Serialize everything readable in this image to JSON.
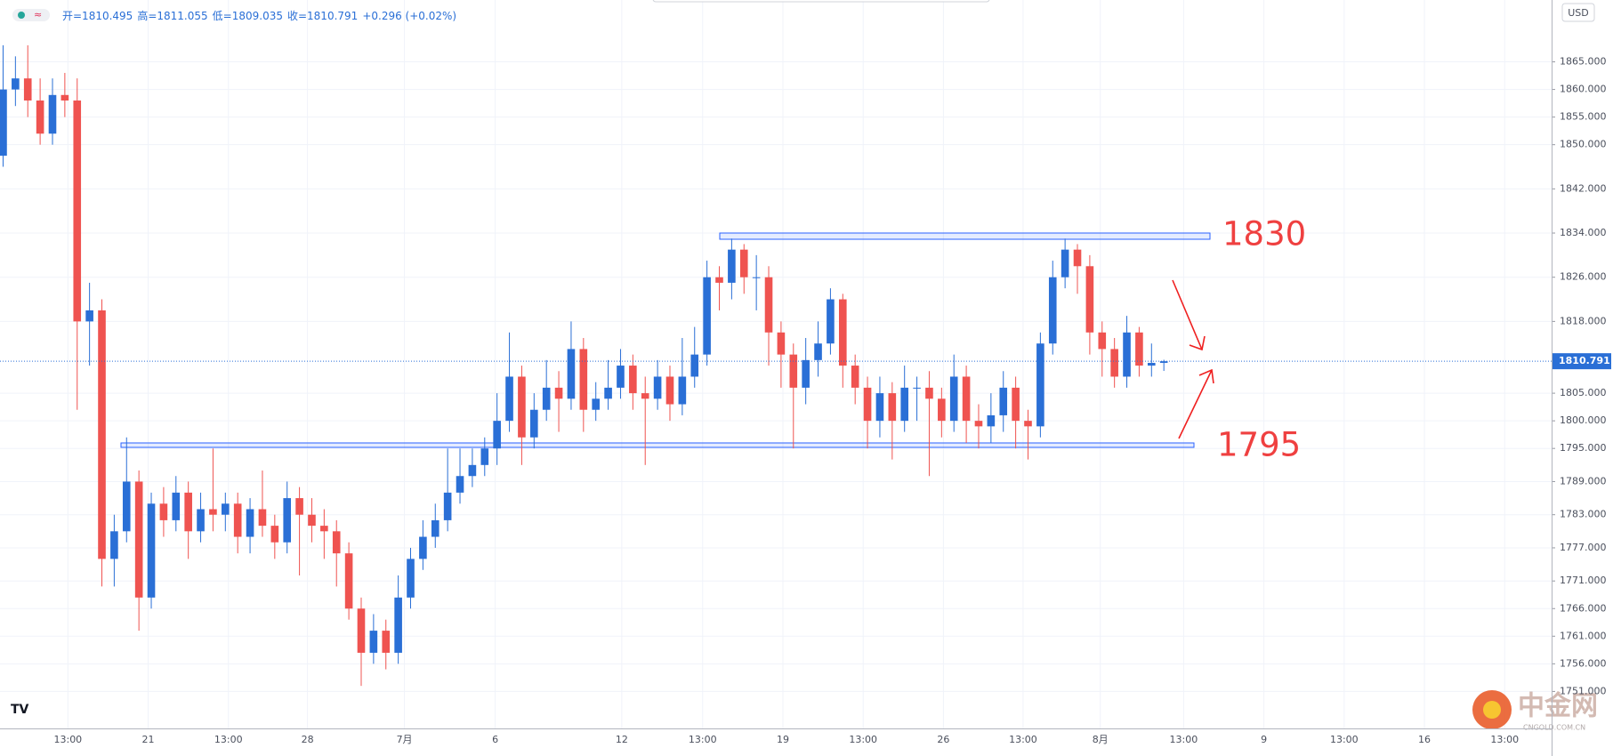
{
  "chart_data": {
    "type": "candlestick",
    "status": [
      "开=1810.495",
      "高=1811.055",
      "低=1809.035",
      "收=1810.791",
      "+0.296 (+0.02%)"
    ],
    "currency": "USD",
    "last_price": {
      "value": 1810.791,
      "label": "1810.791"
    },
    "levels": [
      "1830",
      "1795"
    ],
    "watermark": {
      "name": "中金网",
      "url": "CNGOLD.COM.CN"
    },
    "up_color": "#2a6fd6",
    "down_color": "#ef5350",
    "grid": true,
    "xlim": [
      -0.5,
      250.8
    ],
    "ylim": [
      1744.3,
      1876.2
    ],
    "xticks": [
      {
        "value": 10.5,
        "label": "13:00"
      },
      {
        "value": 23.5,
        "label": "21"
      },
      {
        "value": 36.5,
        "label": "13:00"
      },
      {
        "value": 49.3,
        "label": "28"
      },
      {
        "value": 65,
        "label": "7月"
      },
      {
        "value": 79.7,
        "label": "6"
      },
      {
        "value": 100.2,
        "label": "12"
      },
      {
        "value": 113.3,
        "label": "13:00"
      },
      {
        "value": 126.3,
        "label": "19"
      },
      {
        "value": 139.3,
        "label": "13:00"
      },
      {
        "value": 152.3,
        "label": "26"
      },
      {
        "value": 165.2,
        "label": "13:00"
      },
      {
        "value": 177.7,
        "label": "8月"
      },
      {
        "value": 191.2,
        "label": "13:00"
      },
      {
        "value": 204.2,
        "label": "9"
      },
      {
        "value": 217.2,
        "label": "13:00"
      },
      {
        "value": 230.2,
        "label": "16"
      },
      {
        "value": 243.2,
        "label": "13:00"
      }
    ],
    "yticks": [
      {
        "value": 1865,
        "label": "1865.000"
      },
      {
        "value": 1860,
        "label": "1860.000"
      },
      {
        "value": 1855,
        "label": "1855.000"
      },
      {
        "value": 1850,
        "label": "1850.000"
      },
      {
        "value": 1842,
        "label": "1842.000"
      },
      {
        "value": 1834,
        "label": "1834.000"
      },
      {
        "value": 1826,
        "label": "1826.000"
      },
      {
        "value": 1818,
        "label": "1818.000"
      },
      {
        "value": 1805,
        "label": "1805.000"
      },
      {
        "value": 1800,
        "label": "1800.000"
      },
      {
        "value": 1795,
        "label": "1795.000"
      },
      {
        "value": 1789,
        "label": "1789.000"
      },
      {
        "value": 1783,
        "label": "1783.000"
      },
      {
        "value": 1777,
        "label": "1777.000"
      },
      {
        "value": 1771,
        "label": "1771.000"
      },
      {
        "value": 1766,
        "label": "1766.000"
      },
      {
        "value": 1761,
        "label": "1761.000"
      },
      {
        "value": 1756,
        "label": "1756.000"
      },
      {
        "value": 1751,
        "label": "1751.000"
      }
    ],
    "x": [
      0,
      2,
      4,
      6,
      8,
      10,
      12,
      14,
      16,
      18,
      20,
      22,
      24,
      26,
      28,
      30,
      32,
      34,
      36,
      38,
      40,
      42,
      44,
      46,
      48,
      50,
      52,
      54,
      56,
      58,
      60,
      62,
      64,
      66,
      68,
      70,
      72,
      74,
      76,
      78,
      80,
      82,
      84,
      86,
      88,
      90,
      92,
      94,
      96,
      98,
      100,
      102,
      104,
      106,
      108,
      110,
      112,
      114,
      116,
      118,
      120,
      122,
      124,
      126,
      128,
      130,
      132,
      134,
      136,
      138,
      140,
      142,
      144,
      146,
      148,
      150,
      152,
      154,
      156,
      158,
      160,
      162,
      164,
      166,
      168,
      170,
      172,
      174,
      176,
      178,
      180,
      182,
      184,
      186,
      188
    ],
    "open": [
      1848,
      1860,
      1862,
      1858,
      1852,
      1859,
      1858,
      1818,
      1820,
      1775,
      1780,
      1789,
      1768,
      1785,
      1782,
      1787,
      1780,
      1784,
      1783,
      1785,
      1779,
      1784,
      1781,
      1778,
      1786,
      1783,
      1781,
      1780,
      1776,
      1766,
      1758,
      1762,
      1758,
      1768,
      1775,
      1779,
      1782,
      1787,
      1790,
      1792,
      1795,
      1800,
      1808,
      1797,
      1802,
      1806,
      1804,
      1813,
      1802,
      1804,
      1806,
      1810,
      1805,
      1804,
      1808,
      1803,
      1808,
      1812,
      1826,
      1825,
      1831,
      1826,
      1826,
      1816,
      1812,
      1806,
      1811,
      1814,
      1822,
      1810,
      1806,
      1800,
      1805,
      1800,
      1806,
      1806,
      1804,
      1800,
      1808,
      1800,
      1799,
      1801,
      1806,
      1800,
      1799,
      1814,
      1826,
      1831,
      1828,
      1816,
      1813,
      1808,
      1816,
      1810,
      1810.495
    ],
    "high": [
      1868,
      1866,
      1868,
      1862,
      1862,
      1863,
      1862,
      1825,
      1822,
      1783,
      1797,
      1791,
      1787,
      1788,
      1790,
      1789,
      1787,
      1795,
      1787,
      1787,
      1786,
      1791,
      1783,
      1789,
      1788,
      1786,
      1784,
      1782,
      1778,
      1768,
      1765,
      1764,
      1772,
      1777,
      1782,
      1785,
      1795,
      1795,
      1795,
      1797,
      1805,
      1816,
      1810,
      1805,
      1811,
      1809,
      1818,
      1815,
      1807,
      1811,
      1813,
      1812,
      1808,
      1811,
      1810,
      1815,
      1817,
      1829,
      1828,
      1833,
      1832,
      1830,
      1828,
      1818,
      1814,
      1815,
      1818,
      1824,
      1823,
      1812,
      1808,
      1808,
      1807,
      1810,
      1808,
      1809,
      1806,
      1812,
      1810,
      1803,
      1805,
      1809,
      1808,
      1802,
      1816,
      1829,
      1833,
      1832,
      1830,
      1818,
      1815,
      1819,
      1817,
      1814,
      1811.055
    ],
    "low": [
      1846,
      1857,
      1855,
      1850,
      1850,
      1855,
      1802,
      1810,
      1770,
      1770,
      1778,
      1762,
      1766,
      1779,
      1780,
      1775,
      1778,
      1780,
      1780,
      1776,
      1776,
      1779,
      1775,
      1776,
      1772,
      1778,
      1775,
      1770,
      1764,
      1752,
      1756,
      1755,
      1756,
      1766,
      1773,
      1777,
      1780,
      1785,
      1788,
      1790,
      1792,
      1798,
      1792,
      1795,
      1800,
      1798,
      1802,
      1798,
      1800,
      1802,
      1804,
      1802,
      1792,
      1802,
      1800,
      1801,
      1806,
      1810,
      1820,
      1822,
      1823,
      1820,
      1810,
      1806,
      1795,
      1803,
      1808,
      1812,
      1806,
      1803,
      1795,
      1797,
      1793,
      1798,
      1800,
      1790,
      1797,
      1798,
      1796,
      1795,
      1796,
      1798,
      1795,
      1793,
      1797,
      1812,
      1824,
      1823,
      1812,
      1808,
      1806,
      1806,
      1808,
      1808,
      1809.035
    ],
    "close": [
      1860,
      1862,
      1858,
      1852,
      1859,
      1858,
      1818,
      1820,
      1775,
      1780,
      1789,
      1768,
      1785,
      1782,
      1787,
      1780,
      1784,
      1783,
      1785,
      1779,
      1784,
      1781,
      1778,
      1786,
      1783,
      1781,
      1780,
      1776,
      1766,
      1758,
      1762,
      1758,
      1768,
      1775,
      1779,
      1782,
      1787,
      1790,
      1792,
      1795,
      1800,
      1808,
      1797,
      1802,
      1806,
      1804,
      1813,
      1802,
      1804,
      1806,
      1810,
      1805,
      1804,
      1808,
      1803,
      1808,
      1812,
      1826,
      1825,
      1831,
      1826,
      1826,
      1816,
      1812,
      1806,
      1811,
      1814,
      1822,
      1810,
      1806,
      1800,
      1805,
      1800,
      1806,
      1806,
      1804,
      1800,
      1808,
      1800,
      1799,
      1801,
      1806,
      1800,
      1799,
      1814,
      1826,
      1831,
      1828,
      1816,
      1813,
      1808,
      1816,
      1810,
      1810.495,
      1810.791
    ]
  }
}
